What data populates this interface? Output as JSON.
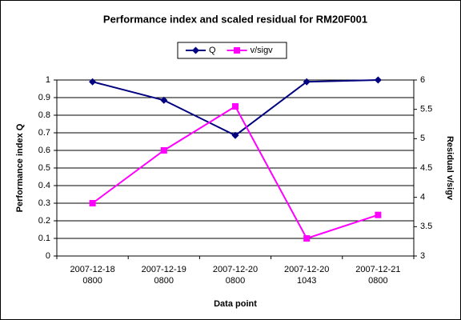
{
  "chart_data": {
    "type": "line",
    "title": "Performance index and scaled residual for RM20F001",
    "x_label": "Data point",
    "y_label": "Performance index Q",
    "y2_label": "Residual v/sigv",
    "categories": [
      [
        "2007-12-18",
        "0800"
      ],
      [
        "2007-12-19",
        "0800"
      ],
      [
        "2007-12-20",
        "0800"
      ],
      [
        "2007-12-20",
        "1043"
      ],
      [
        "2007-12-21",
        "0800"
      ]
    ],
    "series": [
      {
        "name": "Q",
        "color": "#000080",
        "marker": "diamond",
        "values": [
          0.99,
          0.885,
          0.685,
          0.99,
          1.0
        ]
      },
      {
        "name": "v/sigv",
        "color": "#ff00ff",
        "marker": "square",
        "axis": "y2",
        "values": [
          3.9,
          4.8,
          5.55,
          3.3,
          3.7
        ]
      }
    ],
    "ylim": [
      0,
      1
    ],
    "yticks": [
      0,
      0.1,
      0.2,
      0.3,
      0.4,
      0.5,
      0.6,
      0.7,
      0.8,
      0.9,
      1
    ],
    "y2lim": [
      3,
      6
    ],
    "y2ticks": [
      3,
      3.5,
      4,
      4.5,
      5,
      5.5,
      6
    ],
    "grid": true,
    "legend": "top"
  }
}
